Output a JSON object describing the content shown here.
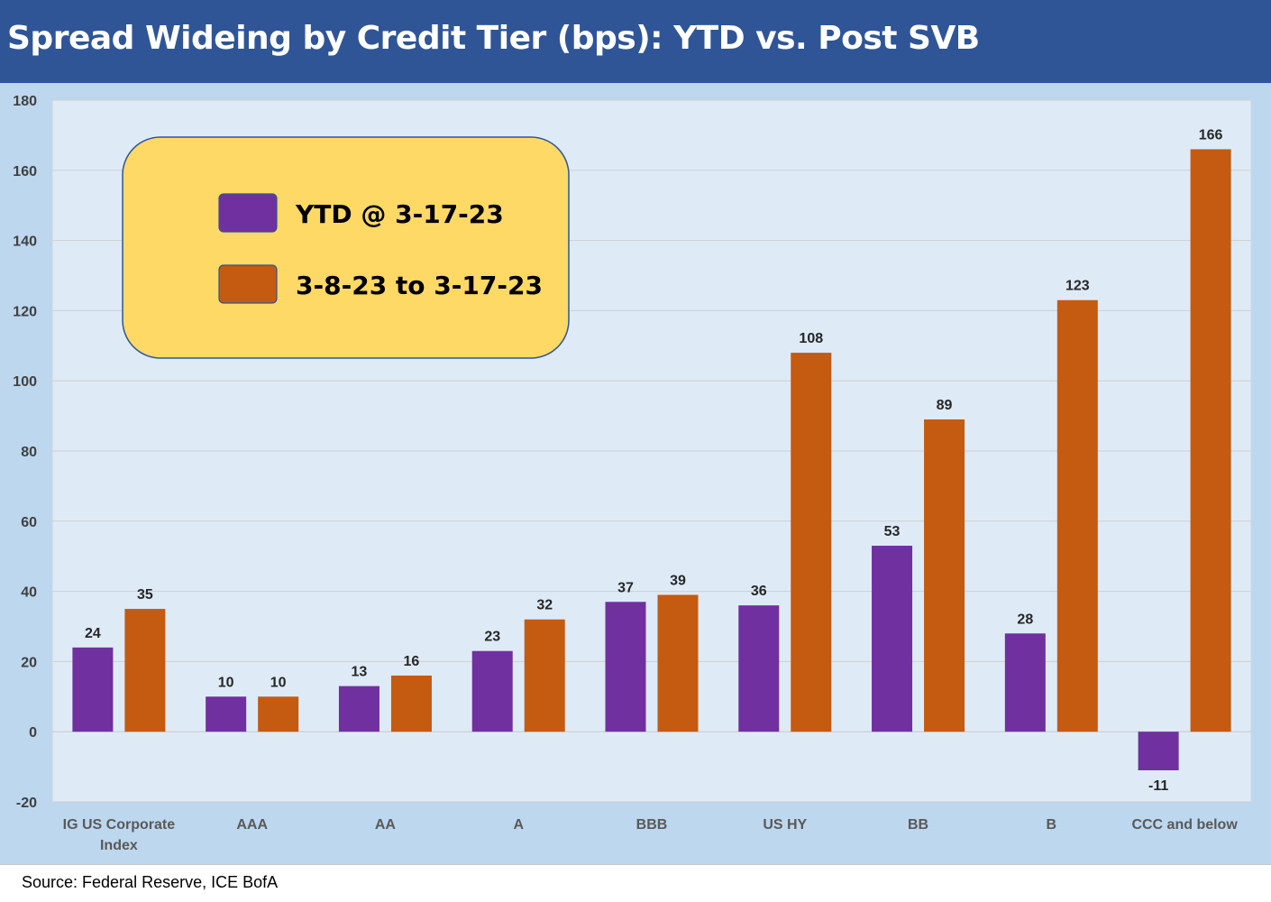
{
  "title": "Spread Wideing by Credit Tier (bps): YTD vs. Post SVB",
  "source": "Source: Federal Reserve, ICE BofA",
  "colors": {
    "header": "#2f5597",
    "frame": "#bdd7ee",
    "plot": "#deebf7",
    "series_ytd": "#7030a0",
    "series_post": "#c55a11",
    "legend_fill": "#ffd966",
    "legend_border": "#2f5597"
  },
  "chart_data": {
    "type": "bar",
    "title": "Spread Wideing by Credit Tier (bps): YTD vs. Post SVB",
    "xlabel": "",
    "ylabel": "",
    "ylim": [
      -20,
      180
    ],
    "ytick_step": 20,
    "grid": true,
    "legend_position": "top-left",
    "categories": [
      [
        "IG US Corporate",
        "Index"
      ],
      [
        "AAA"
      ],
      [
        "AA"
      ],
      [
        "A"
      ],
      [
        "BBB"
      ],
      [
        "US HY"
      ],
      [
        "BB"
      ],
      [
        "B"
      ],
      [
        "CCC and below"
      ]
    ],
    "series": [
      {
        "name": "YTD @ 3-17-23",
        "color": "#7030a0",
        "values": [
          24,
          10,
          13,
          23,
          37,
          36,
          53,
          28,
          -11
        ]
      },
      {
        "name": "3-8-23 to 3-17-23",
        "color": "#c55a11",
        "values": [
          35,
          10,
          16,
          32,
          39,
          108,
          89,
          123,
          166
        ]
      }
    ]
  }
}
